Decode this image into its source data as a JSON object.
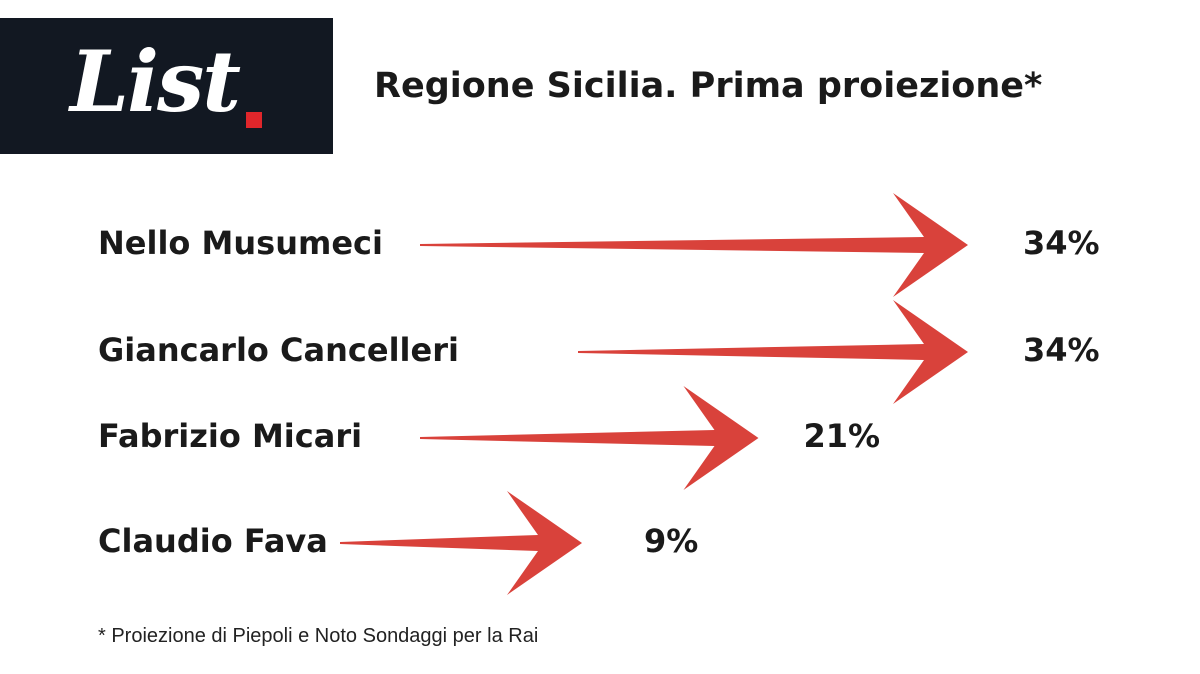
{
  "brand": {
    "logo_text": "List"
  },
  "title": "Regione Sicilia. Prima proiezione*",
  "footnote": "* Proiezione di Piepoli e Noto Sondaggi per la Rai",
  "colors": {
    "arrow": "#d9423b",
    "logo_bg": "#121822",
    "logo_dot": "#e0262b"
  },
  "chart_data": {
    "type": "bar",
    "categories": [
      "Nello Musumeci",
      "Giancarlo Cancelleri",
      "Fabrizio Micari",
      "Claudio Fava"
    ],
    "values": [
      34,
      34,
      21,
      9
    ],
    "value_labels": [
      "34%",
      "34%",
      "21%",
      "9%"
    ],
    "title": "Regione Sicilia. Prima proiezione*",
    "unit": "%"
  }
}
